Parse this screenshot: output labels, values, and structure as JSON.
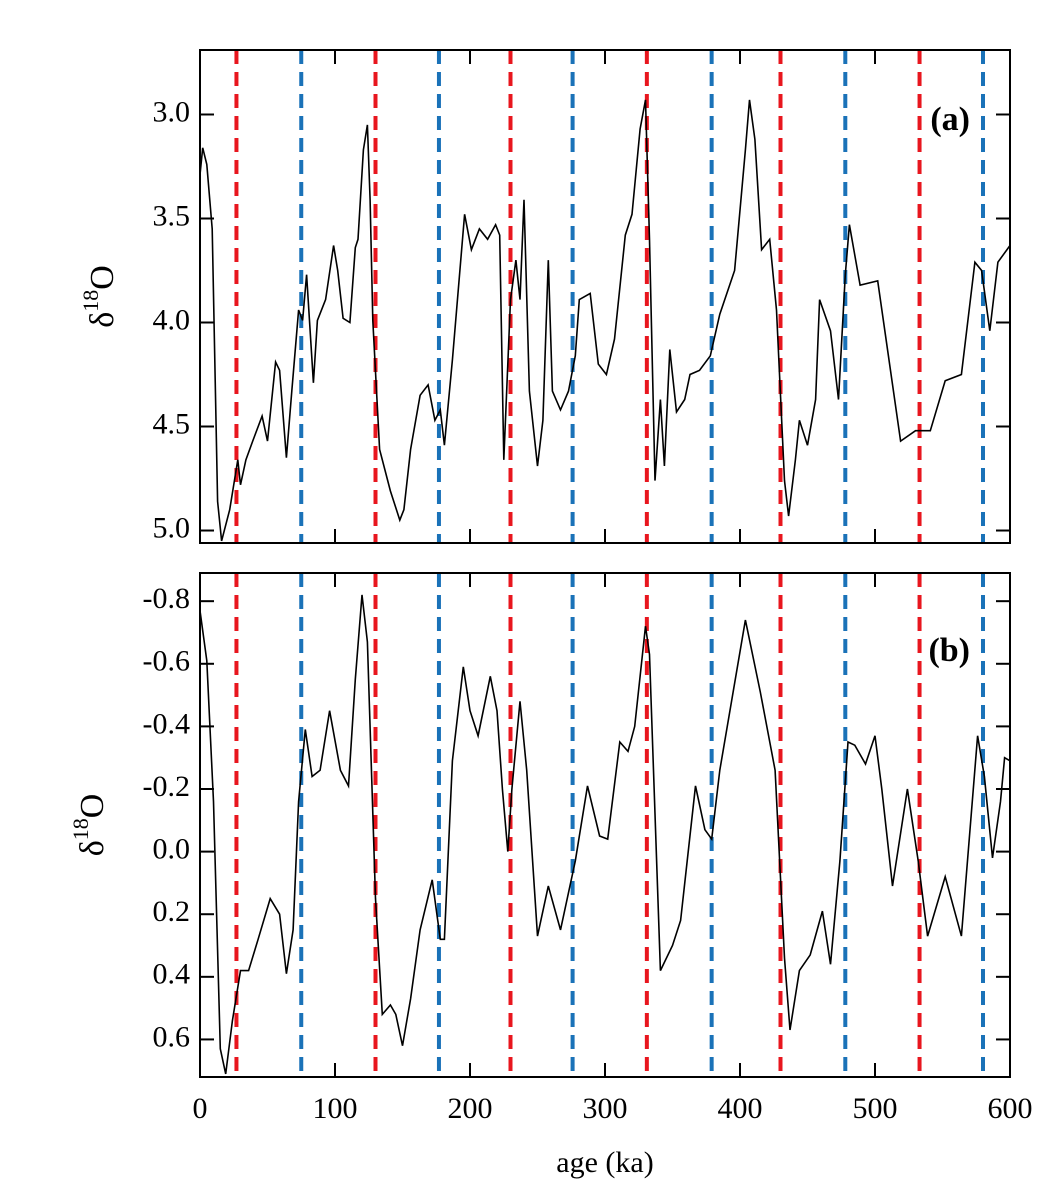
{
  "chart_data": [
    {
      "type": "line",
      "annotation": "(a)",
      "ylabel": [
        "δ",
        "18",
        "O"
      ],
      "xlim": [
        0,
        600
      ],
      "xticks": [
        0,
        100,
        200,
        300,
        400,
        500,
        600
      ],
      "show_xtick_labels": false,
      "ylim": [
        5.06,
        2.69
      ],
      "yticks": [
        {
          "value": 3,
          "label": "3.0"
        },
        3.5,
        {
          "value": 4,
          "label": "4.0"
        },
        4.5,
        {
          "value": 5,
          "label": "5.0"
        }
      ],
      "vlines": [
        {
          "color": "#e8161e",
          "x": [
            27,
            130,
            230,
            331,
            430,
            533
          ]
        },
        {
          "color": "#1a72b8",
          "x": [
            75,
            177,
            276,
            379,
            478,
            580
          ]
        }
      ],
      "x": [
        0,
        2,
        5,
        9,
        13,
        16,
        22,
        28,
        30,
        34,
        39,
        46,
        50,
        56,
        59,
        64,
        68,
        73,
        76,
        79,
        84,
        87,
        93,
        99,
        102,
        106,
        111,
        115,
        117,
        121,
        124,
        126,
        128,
        133,
        141,
        148,
        151,
        156,
        163,
        169,
        174,
        178,
        181,
        187,
        196,
        201,
        207,
        213,
        219,
        222,
        225,
        230,
        234,
        237,
        240,
        244,
        250,
        254,
        258,
        261,
        267,
        273,
        278,
        281,
        289,
        295,
        301,
        307,
        315,
        320,
        326,
        330,
        333,
        337,
        341,
        344,
        348,
        353,
        359,
        363,
        370,
        378,
        385,
        396,
        404,
        407,
        411,
        416,
        422,
        427,
        433,
        436,
        441,
        444,
        450,
        456,
        459,
        467,
        473,
        478,
        481,
        489,
        502,
        519,
        530,
        541,
        552,
        564,
        574,
        579,
        585,
        591,
        600
      ],
      "series": [
        {
          "color": "#000000",
          "values": [
            3.29,
            3.16,
            3.24,
            3.55,
            4.86,
            5.05,
            4.9,
            4.66,
            4.78,
            4.66,
            4.57,
            4.45,
            4.57,
            4.19,
            4.23,
            4.65,
            4.33,
            3.94,
            3.99,
            3.77,
            4.29,
            3.99,
            3.89,
            3.63,
            3.75,
            3.98,
            4.0,
            3.64,
            3.6,
            3.17,
            3.05,
            3.41,
            3.99,
            4.61,
            4.81,
            4.95,
            4.9,
            4.61,
            4.35,
            4.3,
            4.47,
            4.42,
            4.59,
            4.18,
            3.48,
            3.65,
            3.55,
            3.6,
            3.53,
            3.58,
            4.66,
            3.89,
            3.7,
            3.89,
            3.41,
            4.33,
            4.69,
            4.47,
            3.7,
            4.33,
            4.42,
            4.33,
            4.16,
            3.89,
            3.86,
            4.2,
            4.25,
            4.08,
            3.58,
            3.48,
            3.07,
            2.93,
            3.6,
            4.76,
            4.37,
            4.69,
            4.13,
            4.43,
            4.37,
            4.25,
            4.23,
            4.16,
            3.96,
            3.75,
            3.17,
            2.93,
            3.12,
            3.65,
            3.6,
            3.94,
            4.76,
            4.93,
            4.66,
            4.47,
            4.59,
            4.37,
            3.89,
            4.04,
            4.37,
            3.77,
            3.53,
            3.82,
            3.8,
            4.57,
            4.52,
            4.52,
            4.28,
            4.25,
            3.71,
            3.75,
            4.04,
            3.71,
            3.63
          ]
        }
      ]
    },
    {
      "type": "line",
      "annotation": "(b)",
      "ylabel": [
        "δ",
        "18",
        "O"
      ],
      "xlabel": "age (ka)",
      "xlim": [
        0,
        600
      ],
      "xticks": [
        0,
        100,
        200,
        300,
        400,
        500,
        600
      ],
      "show_xtick_labels": true,
      "ylim": [
        0.72,
        -0.89
      ],
      "yticks": [
        -0.8,
        -0.6,
        -0.4,
        -0.2,
        {
          "value": 0,
          "label": "0.0"
        },
        0.2,
        0.4,
        0.6
      ],
      "vlines": [
        {
          "color": "#e8161e",
          "x": [
            27,
            130,
            230,
            331,
            430,
            533
          ]
        },
        {
          "color": "#1a72b8",
          "x": [
            75,
            177,
            276,
            379,
            478,
            580
          ]
        }
      ],
      "x": [
        0,
        5,
        10,
        15,
        19,
        24,
        30,
        36,
        43,
        52,
        59,
        64,
        69,
        73,
        78,
        83,
        89,
        96,
        104,
        110,
        115,
        120,
        124,
        130,
        135,
        141,
        145,
        150,
        156,
        163,
        172,
        178,
        181,
        187,
        195,
        200,
        206,
        215,
        220,
        224,
        228,
        231,
        237,
        242,
        250,
        258,
        267,
        278,
        287,
        296,
        302,
        311,
        317,
        322,
        330,
        333,
        341,
        350,
        356,
        367,
        374,
        379,
        385,
        404,
        415,
        426,
        433,
        437,
        444,
        452,
        461,
        467,
        474,
        480,
        485,
        493,
        500,
        505,
        513,
        524,
        532,
        539,
        552,
        564,
        576,
        581,
        587,
        593,
        596,
        600
      ],
      "series": [
        {
          "color": "#000000",
          "values": [
            -0.77,
            -0.61,
            -0.16,
            0.63,
            0.71,
            0.54,
            0.38,
            0.38,
            0.28,
            0.15,
            0.2,
            0.39,
            0.25,
            -0.16,
            -0.39,
            -0.24,
            -0.26,
            -0.45,
            -0.26,
            -0.21,
            -0.55,
            -0.82,
            -0.67,
            0.15,
            0.52,
            0.49,
            0.52,
            0.62,
            0.47,
            0.25,
            0.09,
            0.28,
            0.28,
            -0.29,
            -0.59,
            -0.45,
            -0.37,
            -0.56,
            -0.45,
            -0.2,
            0.0,
            -0.2,
            -0.48,
            -0.26,
            0.27,
            0.11,
            0.25,
            0.03,
            -0.21,
            -0.05,
            -0.04,
            -0.35,
            -0.32,
            -0.4,
            -0.72,
            -0.63,
            0.38,
            0.3,
            0.22,
            -0.21,
            -0.07,
            -0.04,
            -0.26,
            -0.74,
            -0.51,
            -0.26,
            0.34,
            0.57,
            0.38,
            0.33,
            0.19,
            0.36,
            0.03,
            -0.35,
            -0.34,
            -0.28,
            -0.37,
            -0.2,
            0.11,
            -0.2,
            0.03,
            0.27,
            0.08,
            0.27,
            -0.37,
            -0.24,
            0.02,
            -0.16,
            -0.3,
            -0.29
          ]
        }
      ]
    }
  ]
}
